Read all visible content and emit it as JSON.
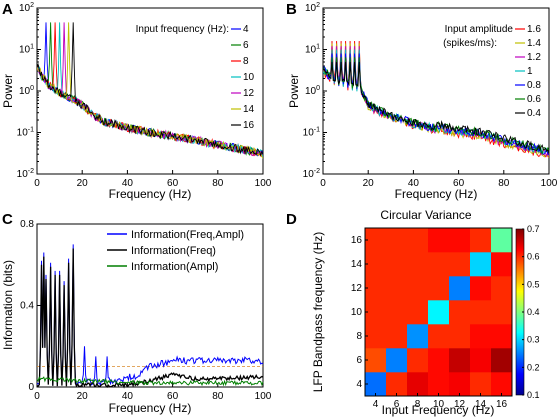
{
  "chart_data": [
    {
      "panel": "A",
      "type": "line",
      "xlabel": "Frequency (Hz)",
      "ylabel": "Power",
      "xlim": [
        0,
        100
      ],
      "ylim": [
        0.01,
        100
      ],
      "yscale": "log",
      "xticks": [
        "0",
        "20",
        "40",
        "60",
        "80",
        "100"
      ],
      "yticks": [
        "10^-2",
        "10^-1",
        "10^0",
        "10^1",
        "10^2"
      ],
      "legend_title": "Input frequency (Hz):",
      "legend_position": "top-right",
      "series": [
        {
          "name": "4",
          "color": "#0000ff",
          "peak_x": 4,
          "peak_y": 45
        },
        {
          "name": "6",
          "color": "#007f00",
          "peak_x": 6,
          "peak_y": 45
        },
        {
          "name": "8",
          "color": "#ff0000",
          "peak_x": 8,
          "peak_y": 45
        },
        {
          "name": "10",
          "color": "#00bfbf",
          "peak_x": 10,
          "peak_y": 45
        },
        {
          "name": "12",
          "color": "#bf00bf",
          "peak_x": 12,
          "peak_y": 45
        },
        {
          "name": "14",
          "color": "#bfbf00",
          "peak_x": 14,
          "peak_y": 45
        },
        {
          "name": "16",
          "color": "#000000",
          "peak_x": 16,
          "peak_y": 45
        }
      ],
      "baseline": [
        [
          0,
          4
        ],
        [
          2,
          2.3
        ],
        [
          5,
          1.4
        ],
        [
          10,
          0.9
        ],
        [
          20,
          0.45
        ],
        [
          25,
          0.25
        ],
        [
          30,
          0.18
        ],
        [
          40,
          0.13
        ],
        [
          50,
          0.1
        ],
        [
          60,
          0.08
        ],
        [
          70,
          0.065
        ],
        [
          80,
          0.05
        ],
        [
          90,
          0.04
        ],
        [
          100,
          0.03
        ]
      ]
    },
    {
      "panel": "B",
      "type": "line",
      "xlabel": "Frequency (Hz)",
      "ylabel": "Power",
      "xlim": [
        0,
        100
      ],
      "ylim": [
        0.01,
        100
      ],
      "yscale": "log",
      "xticks": [
        "0",
        "20",
        "40",
        "60",
        "80",
        "100"
      ],
      "yticks": [
        "10^-2",
        "10^-1",
        "10^0",
        "10^1",
        "10^2"
      ],
      "legend_title": "Input amplitude (spikes/ms):",
      "legend_position": "top-right",
      "series": [
        {
          "name": "1.6",
          "color": "#ff0000",
          "peak_y": 16
        },
        {
          "name": "1.4",
          "color": "#bfbf00",
          "peak_y": 14
        },
        {
          "name": "1.2",
          "color": "#bf00bf",
          "peak_y": 12
        },
        {
          "name": "1",
          "color": "#00bfbf",
          "peak_y": 10
        },
        {
          "name": "0.8",
          "color": "#0000ff",
          "peak_y": 8
        },
        {
          "name": "0.6",
          "color": "#007f00",
          "peak_y": 6.5
        },
        {
          "name": "0.4",
          "color": "#000000",
          "peak_y": 5
        }
      ],
      "peak_x": [
        4,
        6,
        8,
        10,
        12,
        14,
        16
      ],
      "baseline": [
        [
          0,
          4
        ],
        [
          3,
          2.6
        ],
        [
          6,
          2
        ],
        [
          10,
          1.7
        ],
        [
          16,
          1.4
        ],
        [
          20,
          0.55
        ],
        [
          25,
          0.4
        ],
        [
          30,
          0.3
        ],
        [
          40,
          0.2
        ],
        [
          50,
          0.15
        ],
        [
          60,
          0.12
        ],
        [
          70,
          0.1
        ],
        [
          80,
          0.07
        ],
        [
          90,
          0.05
        ],
        [
          100,
          0.035
        ]
      ]
    },
    {
      "panel": "C",
      "type": "line",
      "xlabel": "Frequency (Hz)",
      "ylabel": "Information (bits)",
      "xlim": [
        0,
        100
      ],
      "ylim": [
        0,
        0.8
      ],
      "xticks": [
        "0",
        "20",
        "40",
        "60",
        "80",
        "100"
      ],
      "yticks": [
        "0",
        "0.4",
        "0.8"
      ],
      "legend_position": "top-right",
      "threshold": 0.1,
      "series": [
        {
          "name": "Information(Freq,Ampl)",
          "color": "#0000ff",
          "peaks": [
            [
              2,
              0.62
            ],
            [
              3,
              0.66
            ],
            [
              4,
              0.55
            ],
            [
              6,
              0.61
            ],
            [
              8,
              0.57
            ],
            [
              10,
              0.57
            ],
            [
              12,
              0.52
            ],
            [
              14,
              0.63
            ],
            [
              16,
              0.7
            ],
            [
              21,
              0.2
            ],
            [
              26,
              0.15
            ],
            [
              31,
              0.15
            ]
          ],
          "baseline": [
            [
              0,
              0.02
            ],
            [
              20,
              0.02
            ],
            [
              35,
              0.03
            ],
            [
              45,
              0.06
            ],
            [
              50,
              0.1
            ],
            [
              60,
              0.13
            ],
            [
              80,
              0.13
            ],
            [
              100,
              0.13
            ]
          ]
        },
        {
          "name": "Information(Freq)",
          "color": "#000000",
          "peaks": [
            [
              2,
              0.6
            ],
            [
              3,
              0.64
            ],
            [
              4,
              0.53
            ],
            [
              6,
              0.59
            ],
            [
              8,
              0.55
            ],
            [
              10,
              0.55
            ],
            [
              12,
              0.5
            ],
            [
              14,
              0.61
            ],
            [
              16,
              0.68
            ]
          ],
          "baseline": [
            [
              0,
              0.01
            ],
            [
              20,
              0.01
            ],
            [
              40,
              0.01
            ],
            [
              50,
              0.03
            ],
            [
              60,
              0.06
            ],
            [
              70,
              0.04
            ],
            [
              80,
              0.04
            ],
            [
              100,
              0.05
            ]
          ]
        },
        {
          "name": "Information(Ampl)",
          "color": "#007f00",
          "peaks": [],
          "baseline": [
            [
              0,
              0.04
            ],
            [
              20,
              0.03
            ],
            [
              50,
              0.02
            ],
            [
              100,
              0.02
            ]
          ]
        }
      ]
    },
    {
      "panel": "D",
      "type": "heatmap",
      "title": "Circular Variance",
      "xlabel": "Input Frequency (Hz)",
      "ylabel": "LFP Bandpass frequency (Hz)",
      "categories": [
        "4",
        "6",
        "8",
        "10",
        "12",
        "14",
        "16"
      ],
      "colorbar": {
        "min": 0.1,
        "max": 0.7,
        "ticks": [
          "0.1",
          "0.2",
          "0.3",
          "0.4",
          "0.5",
          "0.6",
          "0.7"
        ]
      },
      "values": [
        [
          0.24,
          0.6,
          0.64,
          0.62,
          0.63,
          0.6,
          0.62
        ],
        [
          0.58,
          0.25,
          0.6,
          0.62,
          0.66,
          0.63,
          0.68
        ],
        [
          0.6,
          0.6,
          0.26,
          0.6,
          0.6,
          0.62,
          0.62
        ],
        [
          0.6,
          0.6,
          0.6,
          0.32,
          0.6,
          0.6,
          0.6
        ],
        [
          0.6,
          0.6,
          0.6,
          0.6,
          0.25,
          0.62,
          0.6
        ],
        [
          0.6,
          0.6,
          0.6,
          0.6,
          0.6,
          0.3,
          0.62
        ],
        [
          0.6,
          0.6,
          0.6,
          0.62,
          0.62,
          0.6,
          0.38
        ]
      ]
    }
  ],
  "labels": {
    "A": "A",
    "B": "B",
    "C": "C",
    "D": "D"
  }
}
